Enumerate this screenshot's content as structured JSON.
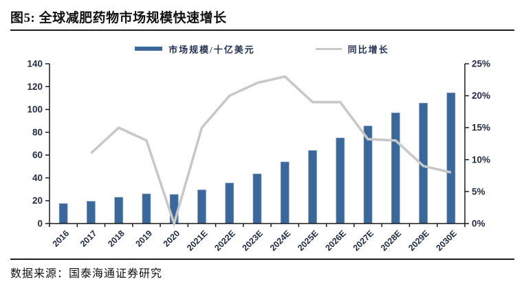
{
  "header": {
    "title": "图5: 全球减肥药物市场规模快速增长"
  },
  "footer": {
    "source": "数据来源：国泰海通证券研究"
  },
  "colors": {
    "bar": "#3a689b",
    "bar_edge": "#7e9cc0",
    "line": "#c8c8c8",
    "axis": "#1a1a1a",
    "label": "#222d44",
    "rule": "#1c1c1c"
  },
  "chart_data": {
    "type": "bar",
    "subtype": "combo-bar-line-dual-axis",
    "title": "全球减肥药物市场规模快速增长",
    "categories": [
      "2016",
      "2017",
      "2018",
      "2019",
      "2020",
      "2021E",
      "2022E",
      "2023E",
      "2024E",
      "2025E",
      "2026E",
      "2027E",
      "2028E",
      "2029E",
      "2030E"
    ],
    "series": [
      {
        "name": "市场规模/十亿美元",
        "type": "bar",
        "axis": "left",
        "values": [
          17.5,
          19.5,
          23,
          26,
          25.5,
          29.5,
          35.5,
          43.5,
          54,
          64,
          75,
          85.5,
          97,
          105.5,
          114.5
        ]
      },
      {
        "name": "同比增长",
        "type": "line",
        "axis": "right",
        "values": [
          null,
          11,
          15,
          13,
          0,
          15,
          20,
          22,
          23,
          19,
          19,
          13.2,
          13,
          9,
          8
        ]
      }
    ],
    "left_axis": {
      "min": 0,
      "max": 140,
      "ticks": [
        0,
        20,
        40,
        60,
        80,
        100,
        120,
        140
      ]
    },
    "right_axis": {
      "min": 0,
      "max": 25,
      "ticks": [
        "0%",
        "5%",
        "10%",
        "15%",
        "20%",
        "25%"
      ],
      "tick_values": [
        0,
        5,
        10,
        15,
        20,
        25
      ]
    },
    "grid": "off",
    "legend_position": "top"
  }
}
